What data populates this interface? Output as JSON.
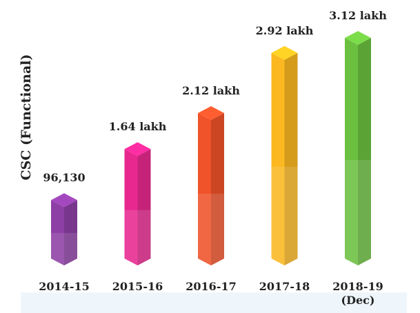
{
  "chart_data": {
    "type": "bar",
    "y_label": "CSC  (Functional)",
    "categories": [
      "2014-15",
      "2015-16",
      "2016-17",
      "2017-18",
      "2018-19 (Dec)"
    ],
    "values": [
      96130,
      164000,
      212000,
      292000,
      312000
    ],
    "value_labels": [
      "96,130",
      "1.64 lakh",
      "2.12 lakh",
      "2.92 lakh",
      "3.12 lakh"
    ],
    "colors": [
      "#8e3fa6",
      "#e8288f",
      "#f0522a",
      "#fbb820",
      "#6cc040"
    ]
  }
}
